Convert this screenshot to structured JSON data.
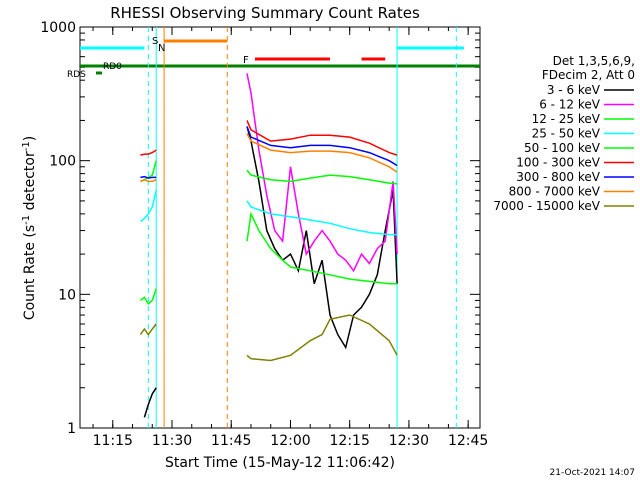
{
  "chart_data": {
    "type": "line",
    "title": "RHESSI Observing Summary Count Rates",
    "xlabel": "Start Time (15-May-12 11:06:42)",
    "ylabel_main": "Count Rate (s",
    "ylabel_sup": "-1",
    "ylabel_mid": " detector",
    "ylabel_sup2": "-1",
    "ylabel_end": ")",
    "yscale": "log",
    "ylim": [
      1,
      1000
    ],
    "xlim_minutes": [
      "11:06:42",
      "12:48:00"
    ],
    "x_ticks": [
      "11:15",
      "11:30",
      "11:45",
      "12:00",
      "12:15",
      "12:30",
      "12:45"
    ],
    "y_ticks": [
      "1",
      "10",
      "100",
      "1000"
    ],
    "legend_header": [
      "Det 1,3,5,6,9,",
      "FDecim 2, Att 0"
    ],
    "timestamp": "21-Oct-2021 14:07",
    "flags": {
      "saa_label": "S",
      "night_label": "N",
      "flare_label": "F",
      "rd0_label": "RD0",
      "rds_label": "RDS"
    },
    "flag_colors": {
      "saa": "#ff8000",
      "night": "#00ffff",
      "flare": "#ff0000",
      "rd": "#008000"
    },
    "gaps": [
      [
        "11:26",
        "11:28"
      ],
      [
        "11:46",
        "11:49"
      ],
      [
        "12:27",
        "12:29"
      ]
    ],
    "series": [
      {
        "name": "3 - 6 keV",
        "color": "#000000",
        "x": [
          "11:23",
          "11:24",
          "11:25",
          "11:26",
          "11:49",
          "11:50",
          "11:52",
          "11:54",
          "11:56",
          "11:58",
          "12:00",
          "12:02",
          "12:04",
          "12:06",
          "12:08",
          "12:10",
          "12:12",
          "12:14",
          "12:16",
          "12:18",
          "12:20",
          "12:22",
          "12:24",
          "12:26",
          "12:27"
        ],
        "y": [
          1.2,
          1.5,
          1.8,
          2.0,
          180,
          140,
          70,
          30,
          22,
          18,
          20,
          15,
          30,
          12,
          18,
          7,
          5,
          4,
          7,
          8,
          10,
          14,
          30,
          60,
          12
        ]
      },
      {
        "name": "6 - 12 keV",
        "color": "#ff00ff",
        "x": [
          "11:49",
          "11:50",
          "11:52",
          "11:54",
          "11:56",
          "11:58",
          "12:00",
          "12:02",
          "12:04",
          "12:06",
          "12:08",
          "12:10",
          "12:12",
          "12:14",
          "12:16",
          "12:18",
          "12:20",
          "12:22",
          "12:24",
          "12:26",
          "12:27"
        ],
        "y": [
          450,
          320,
          120,
          55,
          30,
          25,
          90,
          40,
          20,
          25,
          30,
          25,
          20,
          18,
          15,
          20,
          17,
          22,
          25,
          70,
          20
        ]
      },
      {
        "name": "12 - 25 keV",
        "color": "#00ff00",
        "x": [
          "11:22",
          "11:23",
          "11:24",
          "11:25",
          "11:26",
          "11:49",
          "11:50",
          "11:52",
          "11:55",
          "11:58",
          "12:00",
          "12:05",
          "12:10",
          "12:15",
          "12:20",
          "12:25",
          "12:27"
        ],
        "y": [
          9,
          9.5,
          8.5,
          9,
          11,
          25,
          40,
          30,
          22,
          18,
          16,
          15,
          14,
          13,
          12.5,
          12,
          12
        ]
      },
      {
        "name": "25 - 50 keV",
        "color": "#00ffff",
        "x": [
          "11:22",
          "11:23",
          "11:24",
          "11:25",
          "11:26",
          "11:49",
          "11:50",
          "11:55",
          "12:00",
          "12:05",
          "12:10",
          "12:15",
          "12:20",
          "12:25",
          "12:27"
        ],
        "y": [
          35,
          37,
          40,
          45,
          60,
          50,
          45,
          40,
          38,
          36,
          34,
          31,
          29,
          28,
          28
        ]
      },
      {
        "name": "50 - 100 keV",
        "color": "#00ff00",
        "x": [
          "11:22",
          "11:23",
          "11:24",
          "11:25",
          "11:26",
          "11:49",
          "11:50",
          "11:55",
          "12:00",
          "12:05",
          "12:10",
          "12:15",
          "12:20",
          "12:25",
          "12:27"
        ],
        "y": [
          70,
          72,
          75,
          78,
          100,
          85,
          78,
          72,
          70,
          74,
          78,
          76,
          72,
          68,
          67
        ]
      },
      {
        "name": "100 - 300 keV",
        "color": "#ff0000",
        "x": [
          "11:22",
          "11:23",
          "11:24",
          "11:25",
          "11:26",
          "11:49",
          "11:50",
          "11:55",
          "12:00",
          "12:05",
          "12:10",
          "12:15",
          "12:20",
          "12:25",
          "12:27"
        ],
        "y": [
          110,
          112,
          112,
          115,
          120,
          200,
          170,
          140,
          145,
          155,
          155,
          150,
          135,
          115,
          110
        ]
      },
      {
        "name": "300 - 800 keV",
        "color": "#0000ff",
        "x": [
          "11:22",
          "11:23",
          "11:24",
          "11:25",
          "11:26",
          "11:49",
          "11:50",
          "11:55",
          "12:00",
          "12:05",
          "12:10",
          "12:15",
          "12:20",
          "12:25",
          "12:27"
        ],
        "y": [
          75,
          76,
          74,
          75,
          75,
          180,
          150,
          130,
          125,
          130,
          130,
          125,
          115,
          100,
          92
        ]
      },
      {
        "name": "800 - 7000 keV",
        "color": "#ff8000",
        "x": [
          "11:22",
          "11:23",
          "11:24",
          "11:25",
          "11:26",
          "11:49",
          "11:50",
          "11:55",
          "12:00",
          "12:05",
          "12:10",
          "12:15",
          "12:20",
          "12:25",
          "12:27"
        ],
        "y": [
          70,
          72,
          70,
          70,
          72,
          160,
          140,
          120,
          115,
          118,
          118,
          115,
          105,
          90,
          82
        ]
      },
      {
        "name": "7000 - 15000 keV",
        "color": "#808000",
        "x": [
          "11:22",
          "11:23",
          "11:24",
          "11:25",
          "11:26",
          "11:49",
          "11:50",
          "11:55",
          "12:00",
          "12:05",
          "12:08",
          "12:10",
          "12:15",
          "12:20",
          "12:25",
          "12:27"
        ],
        "y": [
          5,
          5.5,
          5,
          5.5,
          6,
          3.5,
          3.3,
          3.2,
          3.5,
          4.5,
          5,
          6.5,
          7,
          6,
          4.5,
          3.5
        ]
      }
    ]
  }
}
